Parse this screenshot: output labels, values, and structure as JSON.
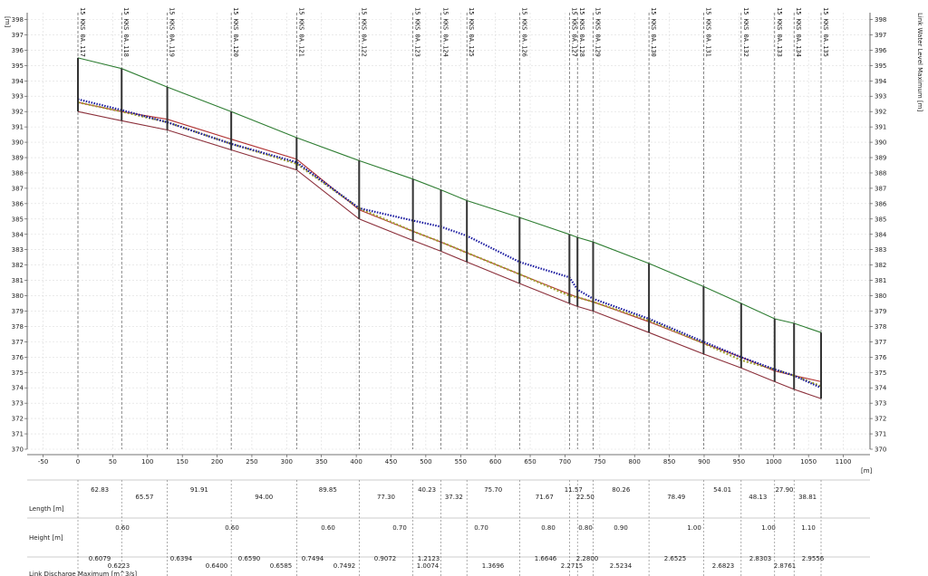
{
  "chart_data": {
    "type": "line",
    "xlabel": "[m]",
    "ylabel_left": "[m]",
    "ylabel_right": "Link Water Level Maximum [m]",
    "xlim": [
      -50,
      1100
    ],
    "ylim": [
      370,
      398
    ],
    "xticks": [
      -50,
      0,
      50,
      100,
      150,
      200,
      250,
      300,
      350,
      400,
      450,
      500,
      550,
      600,
      650,
      700,
      750,
      800,
      850,
      900,
      950,
      1000,
      1050,
      1100
    ],
    "yticks": [
      370,
      371,
      372,
      373,
      374,
      375,
      376,
      377,
      378,
      379,
      380,
      381,
      382,
      383,
      384,
      385,
      386,
      387,
      388,
      389,
      390,
      391,
      392,
      393,
      394,
      395,
      396,
      397,
      398
    ],
    "grid": true,
    "nodes": [
      {
        "id": "15 KKS 0A.117",
        "x": 0,
        "ground": 395.5,
        "bottom": 392.0
      },
      {
        "id": "15 KKS 0A.118",
        "x": 62.83,
        "ground": 394.8,
        "bottom": 391.4
      },
      {
        "id": "15 KKS 0A.119",
        "x": 128.4,
        "ground": 393.6,
        "bottom": 390.8
      },
      {
        "id": "15 KKS 0A.120",
        "x": 220.31,
        "ground": 392.0,
        "bottom": 389.5
      },
      {
        "id": "15 KKS 0A.121",
        "x": 314.31,
        "ground": 390.3,
        "bottom": 388.2
      },
      {
        "id": "15 KKS 0A.122",
        "x": 404.16,
        "ground": 388.8,
        "bottom": 385.0
      },
      {
        "id": "15 KKS 0A.123",
        "x": 481.46,
        "ground": 387.6,
        "bottom": 383.6
      },
      {
        "id": "15 KKS 0A.124",
        "x": 521.69,
        "ground": 386.9,
        "bottom": 382.9
      },
      {
        "id": "15 KKS 0A.125",
        "x": 559.01,
        "ground": 386.2,
        "bottom": 382.2
      },
      {
        "id": "15 KKS 0A.126",
        "x": 634.71,
        "ground": 385.1,
        "bottom": 380.8
      },
      {
        "id": "15 KKS 0A.127",
        "x": 706.38,
        "ground": 384.0,
        "bottom": 379.5
      },
      {
        "id": "15 KKS 0A.128",
        "x": 717.95,
        "ground": 383.8,
        "bottom": 379.3
      },
      {
        "id": "15 KKS 0A.129",
        "x": 740.45,
        "ground": 383.5,
        "bottom": 379.0
      },
      {
        "id": "15 KKS 0A.130",
        "x": 820.71,
        "ground": 382.1,
        "bottom": 377.6
      },
      {
        "id": "15 KKS 0A.131",
        "x": 899.2,
        "ground": 380.6,
        "bottom": 376.2
      },
      {
        "id": "15 KKS 0A.132",
        "x": 953.21,
        "ground": 379.5,
        "bottom": 375.3
      },
      {
        "id": "15 KKS 0A.133",
        "x": 1001.34,
        "ground": 378.5,
        "bottom": 374.4
      },
      {
        "id": "15 KKS 0A.134",
        "x": 1029.24,
        "ground": 378.2,
        "bottom": 373.9
      },
      {
        "id": "15 KKS 0A.135",
        "x": 1068.05,
        "ground": 377.6,
        "bottom": 373.3
      }
    ],
    "series": [
      {
        "color": "#2e7d32",
        "style": "solid",
        "x": [
          0,
          62.83,
          128.4,
          220.31,
          314.31,
          404.16,
          481.46,
          521.69,
          559.01,
          634.71,
          706.38,
          717.95,
          740.45,
          820.71,
          899.2,
          953.21,
          1001.34,
          1029.24,
          1068.05
        ],
        "y": [
          395.5,
          394.8,
          393.6,
          392.0,
          390.3,
          388.8,
          387.6,
          386.9,
          386.2,
          385.1,
          384.0,
          383.8,
          383.5,
          382.1,
          380.6,
          379.5,
          378.5,
          378.2,
          377.6
        ]
      },
      {
        "color": "#b03030",
        "style": "solid",
        "x": [
          0,
          62.83,
          128.4,
          220.31,
          314.31,
          404.16,
          481.46,
          521.69,
          559.01,
          634.71,
          706.38,
          717.95,
          740.45,
          820.71,
          899.2,
          953.21,
          1001.34,
          1029.24,
          1068.05
        ],
        "y": [
          392.6,
          392.0,
          391.5,
          390.2,
          388.9,
          385.6,
          384.2,
          383.5,
          382.8,
          381.4,
          380.1,
          379.9,
          379.6,
          378.3,
          376.9,
          376.0,
          375.1,
          374.8,
          374.4
        ]
      },
      {
        "color": "#8b2f3a",
        "style": "solid",
        "x": [
          0,
          62.83,
          128.4,
          220.31,
          314.31,
          404.16,
          481.46,
          521.69,
          559.01,
          634.71,
          706.38,
          717.95,
          740.45,
          820.71,
          899.2,
          953.21,
          1001.34,
          1029.24,
          1068.05
        ],
        "y": [
          392.0,
          391.4,
          390.8,
          389.5,
          388.2,
          385.0,
          383.6,
          382.9,
          382.2,
          380.8,
          379.5,
          379.3,
          379.0,
          377.6,
          376.2,
          375.3,
          374.4,
          373.9,
          373.3
        ]
      },
      {
        "color": "#a0a030",
        "style": "dotted",
        "x": [
          0,
          62.83,
          128.4,
          220.31,
          314.31,
          404.16,
          481.46,
          521.69,
          559.01,
          634.71,
          706.38,
          717.95,
          740.45,
          820.71,
          899.2,
          953.21,
          1001.34,
          1029.24,
          1068.05
        ],
        "y": [
          392.6,
          392.0,
          391.3,
          389.9,
          388.6,
          385.7,
          384.2,
          383.5,
          382.8,
          381.4,
          380.0,
          379.9,
          379.6,
          378.4,
          376.9,
          375.8,
          375.2,
          374.8,
          374.1
        ]
      },
      {
        "color": "#1a1aa0",
        "style": "dotted",
        "x": [
          0,
          62.83,
          128.4,
          220.31,
          314.31,
          404.16,
          481.46,
          521.69,
          559.01,
          634.71,
          706.38,
          717.95,
          740.45,
          820.71,
          899.2,
          953.21,
          1001.34,
          1029.24,
          1068.05
        ],
        "y": [
          392.8,
          392.1,
          391.3,
          389.9,
          388.7,
          385.7,
          384.9,
          384.5,
          383.9,
          382.2,
          381.2,
          380.4,
          379.8,
          378.5,
          377.0,
          376.0,
          375.2,
          374.8,
          374.0
        ]
      }
    ],
    "table": {
      "length_label": "Length [m]",
      "height_label": "Height [m]",
      "discharge_label": "Link Discharge Maximum [m^3/s]",
      "lengths": [
        "62.83",
        "65.57",
        "91.91",
        "94.00",
        "89.85",
        "77.30",
        "40.23",
        "37.32",
        "75.70",
        "71.67",
        "11.57",
        "22.50",
        "80.26",
        "78.49",
        "54.01",
        "48.13",
        "27.90",
        "38.81"
      ],
      "heights": [
        "0.60",
        "0.60",
        "0.60",
        "0.70",
        "0.70",
        "0.80",
        "0.80",
        "0.90",
        "1.00",
        "1.00",
        "1.10"
      ],
      "discharges": [
        "0.6079",
        "0.6223",
        "0.6394",
        "0.6400",
        "0.6590",
        "0.6585",
        "0.7494",
        "0.7492",
        "0.9072",
        "1.0074",
        "1.2123",
        "1.3696",
        "1.6646",
        "2.2715",
        "2.2800",
        "2.5234",
        "2.6525",
        "2.6823",
        "2.8303",
        "2.8761",
        "2.9556"
      ]
    }
  }
}
